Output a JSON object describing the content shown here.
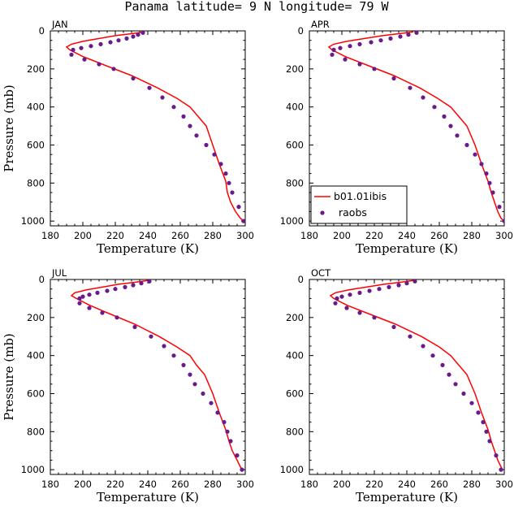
{
  "title": "Panama  latitude= 9 N longitude= 79 W",
  "legend": {
    "placement": "lower-left of upper-right panel",
    "model_label": "b01.01ibis",
    "obs_label": "raobs"
  },
  "colors": {
    "model_line": "#ff0000",
    "obs_marker": "#6a1a8a"
  },
  "chart_data": [
    {
      "type": "line",
      "panel": "JAN",
      "xlabel": "Temperature (K)",
      "ylabel": "Pressure (mb)",
      "xlim": [
        180,
        300
      ],
      "ylim": [
        1025,
        0
      ],
      "xticks": [
        "180",
        "200",
        "220",
        "240",
        "260",
        "280",
        "300"
      ],
      "yticks": [
        "0",
        "200",
        "400",
        "600",
        "800",
        "1000"
      ],
      "series": [
        {
          "name": "b01.01ibis",
          "style": "line",
          "x": [
            238,
            230,
            220,
            210,
            200,
            193,
            190,
            192,
            200,
            212,
            230,
            246,
            258,
            266,
            271,
            276,
            280,
            284,
            288,
            289,
            291,
            294,
            297,
            299
          ],
          "y": [
            5,
            15,
            25,
            40,
            55,
            70,
            85,
            100,
            135,
            175,
            235,
            300,
            355,
            400,
            450,
            500,
            600,
            700,
            790,
            850,
            900,
            950,
            985,
            1000
          ]
        },
        {
          "name": "raobs",
          "style": "markers",
          "x": [
            237,
            234,
            231,
            227,
            222,
            217,
            211,
            205,
            199,
            194,
            193,
            201,
            210,
            219,
            231,
            241,
            249,
            256,
            262,
            266,
            270,
            276,
            281,
            285,
            288,
            290,
            292,
            296,
            299
          ],
          "y": [
            10,
            20,
            30,
            40,
            50,
            60,
            70,
            80,
            90,
            100,
            125,
            150,
            175,
            200,
            250,
            300,
            350,
            400,
            450,
            500,
            550,
            600,
            650,
            700,
            750,
            800,
            850,
            925,
            1000
          ]
        }
      ]
    },
    {
      "type": "line",
      "panel": "APR",
      "xlabel": "Temperature (K)",
      "ylabel": "",
      "xlim": [
        180,
        300
      ],
      "ylim": [
        1025,
        0
      ],
      "xticks": [
        "180",
        "200",
        "220",
        "240",
        "260",
        "280",
        "300"
      ],
      "yticks": [
        "0",
        "200",
        "400",
        "600",
        "800",
        "1000"
      ],
      "series": [
        {
          "name": "b01.01ibis",
          "style": "line",
          "x": [
            244,
            235,
            225,
            214,
            203,
            195,
            192,
            194,
            202,
            214,
            232,
            248,
            259,
            267,
            272,
            277,
            282,
            286,
            290,
            292,
            294,
            296,
            298,
            300
          ],
          "y": [
            5,
            15,
            25,
            40,
            55,
            70,
            85,
            100,
            135,
            175,
            235,
            300,
            355,
            400,
            450,
            500,
            600,
            700,
            790,
            850,
            900,
            950,
            985,
            1000
          ]
        },
        {
          "name": "raobs",
          "style": "markers",
          "x": [
            246,
            241,
            236,
            230,
            224,
            218,
            211,
            205,
            199,
            195,
            194,
            202,
            211,
            220,
            232,
            242,
            250,
            257,
            263,
            267,
            271,
            277,
            282,
            286,
            289,
            291,
            293,
            297,
            300
          ],
          "y": [
            10,
            20,
            30,
            40,
            50,
            60,
            70,
            80,
            90,
            100,
            125,
            150,
            175,
            200,
            250,
            300,
            350,
            400,
            450,
            500,
            550,
            600,
            650,
            700,
            750,
            800,
            850,
            925,
            1000
          ]
        }
      ]
    },
    {
      "type": "line",
      "panel": "JUL",
      "xlabel": "Temperature (K)",
      "ylabel": "Pressure (mb)",
      "xlim": [
        180,
        300
      ],
      "ylim": [
        1025,
        0
      ],
      "xticks": [
        "180",
        "200",
        "220",
        "240",
        "260",
        "280",
        "300"
      ],
      "yticks": [
        "0",
        "200",
        "400",
        "600",
        "800",
        "1000"
      ],
      "series": [
        {
          "name": "b01.01ibis",
          "style": "line",
          "x": [
            240,
            232,
            222,
            212,
            202,
            195,
            193,
            196,
            204,
            215,
            232,
            247,
            258,
            266,
            270,
            275,
            280,
            284,
            288,
            290,
            292,
            295,
            297,
            298
          ],
          "y": [
            5,
            15,
            25,
            40,
            55,
            70,
            85,
            100,
            135,
            175,
            235,
            300,
            355,
            400,
            450,
            500,
            600,
            700,
            790,
            850,
            900,
            950,
            985,
            1000
          ]
        },
        {
          "name": "raobs",
          "style": "markers",
          "x": [
            241,
            236,
            231,
            226,
            220,
            215,
            209,
            204,
            200,
            198,
            198,
            204,
            212,
            221,
            232,
            242,
            250,
            256,
            262,
            266,
            269,
            274,
            279,
            283,
            287,
            289,
            291,
            295,
            298
          ],
          "y": [
            10,
            20,
            30,
            40,
            50,
            60,
            70,
            80,
            90,
            100,
            125,
            150,
            175,
            200,
            250,
            300,
            350,
            400,
            450,
            500,
            550,
            600,
            650,
            700,
            750,
            800,
            850,
            925,
            1000
          ]
        }
      ]
    },
    {
      "type": "line",
      "panel": "OCT",
      "xlabel": "Temperature (K)",
      "ylabel": "",
      "xlim": [
        180,
        300
      ],
      "ylim": [
        1025,
        0
      ],
      "xticks": [
        "180",
        "200",
        "220",
        "240",
        "260",
        "280",
        "300"
      ],
      "yticks": [
        "0",
        "200",
        "400",
        "600",
        "800",
        "1000"
      ],
      "series": [
        {
          "name": "b01.01ibis",
          "style": "line",
          "x": [
            244,
            236,
            226,
            215,
            204,
            196,
            193,
            195,
            203,
            215,
            233,
            249,
            260,
            267,
            272,
            277,
            282,
            286,
            290,
            292,
            294,
            296,
            298,
            299
          ],
          "y": [
            5,
            15,
            25,
            40,
            55,
            70,
            85,
            100,
            135,
            175,
            235,
            300,
            355,
            400,
            450,
            500,
            600,
            700,
            790,
            850,
            900,
            950,
            985,
            1000
          ]
        },
        {
          "name": "raobs",
          "style": "markers",
          "x": [
            245,
            240,
            235,
            229,
            223,
            217,
            211,
            205,
            200,
            197,
            196,
            203,
            211,
            220,
            232,
            242,
            250,
            256,
            262,
            266,
            270,
            275,
            280,
            284,
            287,
            289,
            291,
            295,
            298
          ],
          "y": [
            10,
            20,
            30,
            40,
            50,
            60,
            70,
            80,
            90,
            100,
            125,
            150,
            175,
            200,
            250,
            300,
            350,
            400,
            450,
            500,
            550,
            600,
            650,
            700,
            750,
            800,
            850,
            925,
            1000
          ]
        }
      ]
    }
  ]
}
